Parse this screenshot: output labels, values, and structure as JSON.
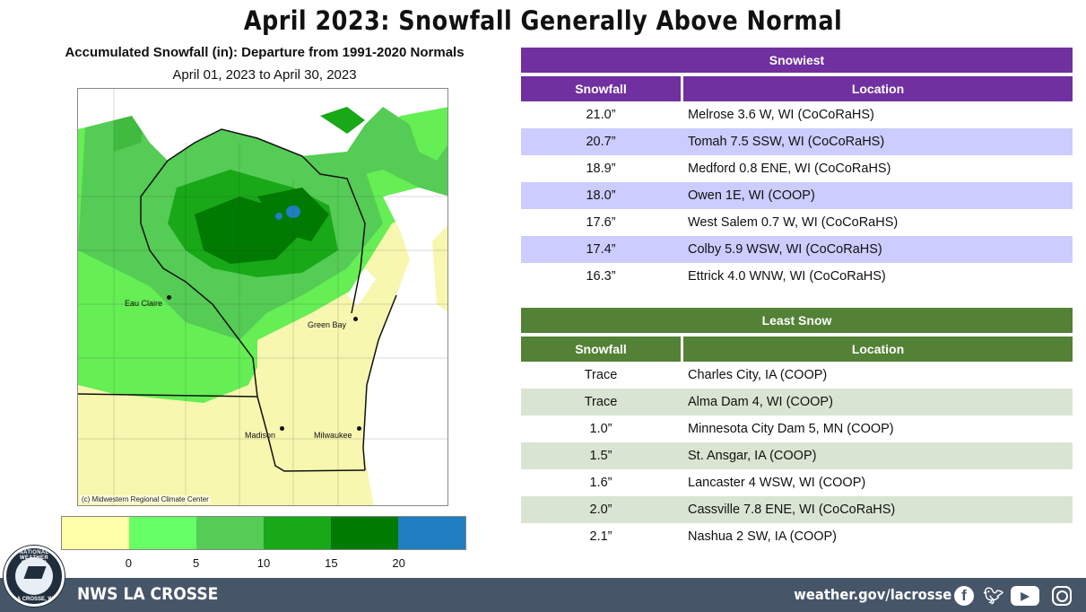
{
  "headline": "April 2023:  Snowfall Generally Above Normal",
  "map": {
    "title": "Accumulated Snowfall (in): Departure from 1991-2020 Normals",
    "subtitle": "April 01, 2023 to April 30, 2023",
    "copyright": "(c) Midwestern Regional Climate Center",
    "cities": [
      "Eau Claire",
      "Green Bay",
      "Madison",
      "Milwaukee"
    ]
  },
  "legend": {
    "colors": [
      "#ffffa8",
      "#66ff66",
      "#55cc55",
      "#18a818",
      "#007a00",
      "#1f7fc0"
    ],
    "ticks": [
      "0",
      "5",
      "10",
      "15",
      "20"
    ]
  },
  "snowiest": {
    "title": "Snowiest",
    "col_snowfall": "Snowfall",
    "col_location": "Location",
    "rows": [
      {
        "snowfall": "21.0”",
        "location": "Melrose 3.6 W, WI (CoCoRaHS)"
      },
      {
        "snowfall": "20.7”",
        "location": "Tomah 7.5 SSW, WI (CoCoRaHS)"
      },
      {
        "snowfall": "18.9”",
        "location": "Medford 0.8 ENE, WI (CoCoRaHS)"
      },
      {
        "snowfall": "18.0”",
        "location": "Owen 1E, WI (COOP)"
      },
      {
        "snowfall": "17.6”",
        "location": "West Salem 0.7 W, WI (CoCoRaHS)"
      },
      {
        "snowfall": "17.4”",
        "location": "Colby 5.9 WSW, WI  (CoCoRaHS)"
      },
      {
        "snowfall": "16.3”",
        "location": "Ettrick 4.0 WNW, WI  (CoCoRaHS)"
      }
    ]
  },
  "least": {
    "title": "Least Snow",
    "col_snowfall": "Snowfall",
    "col_location": "Location",
    "rows": [
      {
        "snowfall": "Trace",
        "location": "Charles City, IA (COOP)"
      },
      {
        "snowfall": "Trace",
        "location": "Alma Dam 4, WI (COOP)"
      },
      {
        "snowfall": "1.0”",
        "location": "Minnesota City Dam 5, MN (COOP)"
      },
      {
        "snowfall": "1.5”",
        "location": "St. Ansgar, IA (COOP)"
      },
      {
        "snowfall": "1.6”",
        "location": "Lancaster 4 WSW, WI (COOP)"
      },
      {
        "snowfall": "2.0”",
        "location": "Cassville 7.8 ENE, WI  (CoCoRaHS)"
      },
      {
        "snowfall": "2.1”",
        "location": "Nashua 2 SW, IA (COOP)"
      }
    ]
  },
  "footer": {
    "office": "NWS LA CROSSE",
    "url": "weather.gov/lacrosse",
    "logo_top": "NATIONAL WEATHER SERVICE",
    "logo_bottom": "LA CROSSE, WI",
    "icons": [
      "facebook-icon",
      "twitter-icon",
      "youtube-icon",
      "instagram-icon"
    ]
  }
}
